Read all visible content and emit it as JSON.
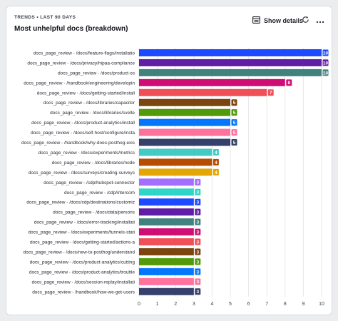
{
  "insight": {
    "overline": "TRENDS • LAST 90 DAYS",
    "title": "Most unhelpful docs (breakdown)",
    "show_details_label": "Show details",
    "icons": {
      "show_details": "table-icon",
      "refresh": "refresh-icon",
      "more": "more-icon"
    }
  },
  "chart_data": {
    "type": "bar",
    "orientation": "horizontal",
    "categories": [
      "docs_page_review - /docs/feature-flags/installatio",
      "docs_page_review - /docs/privacy/hipaa-compliance",
      "docs_page_review - /docs/product-os",
      "docs_page_review - /handbook/engineering/developin",
      "docs_page_review - /docs/getting-started/install",
      "docs_page_review - /docs/libraries/capacitor",
      "docs_page_review - /docs/libraries/svelte",
      "docs_page_review - /docs/product-analytics/install",
      "docs_page_review - /docs/self-host/configure/insta",
      "docs_page_review - /handbook/why-does-posthog-exis",
      "docs_page_review - /docs/experiments/metrics",
      "docs_page_review - /docs/libraries/node",
      "docs_page_review - /docs/surveys/creating-surveys",
      "docs_page_review - /cdp/hubspot-connector",
      "docs_page_review - /cdp/intercom",
      "docs_page_review - /docs/cdp/destinations/customiz",
      "docs_page_review - /docs/data/persons",
      "docs_page_review - /docs/error-tracking/installati",
      "docs_page_review - /docs/experiments/funnels-stati",
      "docs_page_review - /docs/getting-started/actions-a",
      "docs_page_review - /docs/new-to-posthog/understand",
      "docs_page_review - /docs/product-analytics/cutting",
      "docs_page_review - /docs/product-analytics/trouble",
      "docs_page_review - /docs/session-replay/installati",
      "docs_page_review - /handbook/how-we-get-users"
    ],
    "values": [
      10,
      10,
      10,
      8,
      7,
      5,
      5,
      5,
      5,
      5,
      4,
      4,
      4,
      3,
      3,
      3,
      3,
      3,
      3,
      3,
      3,
      3,
      3,
      3,
      3
    ],
    "colors": [
      "#1d4aff",
      "#621da6",
      "#42827e",
      "#ce0e74",
      "#f14f58",
      "#7c440e",
      "#529a0a",
      "#0476fb",
      "#fe729e",
      "#35416b",
      "#41cbc4",
      "#b64b02",
      "#e4a604",
      "#a56eff",
      "#30d5c8",
      "#1d4aff",
      "#621da6",
      "#42827e",
      "#ce0e74",
      "#f14f58",
      "#7c440e",
      "#529a0a",
      "#0476fb",
      "#fe729e",
      "#35416b"
    ],
    "xlim": [
      0,
      10
    ],
    "xticks": [
      0,
      1,
      2,
      3,
      4,
      5,
      6,
      7,
      8,
      9,
      10
    ],
    "grid": true,
    "legend": "none",
    "data_labels": true
  }
}
